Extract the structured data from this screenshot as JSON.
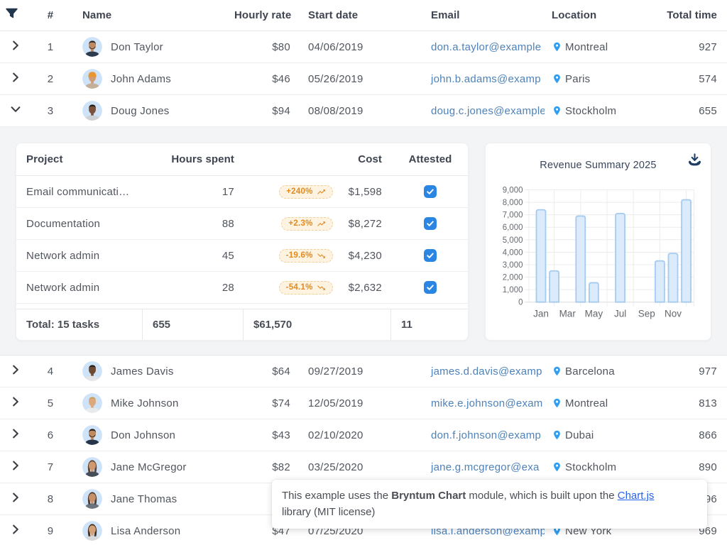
{
  "colors": {
    "accent_blue": "#2a86e2",
    "pin_blue": "#2f9ef2",
    "email_blue": "#4e82ba",
    "badge_orange": "#e28a20",
    "bar_fill": "#dcebfb",
    "bar_border": "#a5cbf0",
    "icon_navy": "#22364e"
  },
  "grid": {
    "columns": {
      "filter_icon": "filter-funnel-icon",
      "number": "#",
      "name": "Name",
      "hourly_rate": "Hourly rate",
      "start_date": "Start date",
      "email": "Email",
      "location": "Location",
      "total_time": "Total time"
    },
    "rows": [
      {
        "number": "1",
        "name": "Don Taylor",
        "hourly_rate": "$80",
        "start_date": "04/06/2019",
        "email": "don.a.taylor@example",
        "location": "Montreal",
        "total_time": "927",
        "expanded": false,
        "avatar": {
          "style": "beard",
          "skin": "#c08a63",
          "hair": "#2e2a28",
          "shirt": "#2c3b4d"
        }
      },
      {
        "number": "2",
        "name": "John Adams",
        "hourly_rate": "$46",
        "start_date": "05/26/2019",
        "email": "john.b.adams@examp",
        "location": "Paris",
        "total_time": "574",
        "expanded": false,
        "avatar": {
          "style": "beanie",
          "skin": "#d29b72",
          "hair": "#e8962f",
          "shirt": "#c4b098"
        }
      },
      {
        "number": "3",
        "name": "Doug Jones",
        "hourly_rate": "$94",
        "start_date": "08/08/2019",
        "email": "doug.c.jones@example",
        "location": "Stockholm",
        "total_time": "655",
        "expanded": true,
        "avatar": {
          "style": "short",
          "skin": "#7a5239",
          "hair": "#1f1b19",
          "shirt": "#cdd1d6"
        }
      },
      {
        "number": "4",
        "name": "James Davis",
        "hourly_rate": "$64",
        "start_date": "09/27/2019",
        "email": "james.d.davis@examp",
        "location": "Barcelona",
        "total_time": "977",
        "expanded": false,
        "avatar": {
          "style": "short",
          "skin": "#6e4a33",
          "hair": "#241f1c",
          "shirt": "#e3e5e8"
        }
      },
      {
        "number": "5",
        "name": "Mike Johnson",
        "hourly_rate": "$74",
        "start_date": "12/05/2019",
        "email": "mike.e.johnson@exam",
        "location": "Montreal",
        "total_time": "813",
        "expanded": false,
        "avatar": {
          "style": "short",
          "skin": "#dca87c",
          "hair": "#c9a15e",
          "shirt": "#e8eaec"
        }
      },
      {
        "number": "6",
        "name": "Don Johnson",
        "hourly_rate": "$43",
        "start_date": "02/10/2020",
        "email": "don.f.johnson@examp",
        "location": "Dubai",
        "total_time": "866",
        "expanded": false,
        "avatar": {
          "style": "beard",
          "skin": "#c08a5f",
          "hair": "#231e1b",
          "shirt": "#263447"
        }
      },
      {
        "number": "7",
        "name": "Jane McGregor",
        "hourly_rate": "$82",
        "start_date": "03/25/2020",
        "email": "jane.g.mcgregor@exa",
        "location": "Stockholm",
        "total_time": "890",
        "expanded": false,
        "avatar": {
          "style": "long",
          "skin": "#cf9a72",
          "hair": "#5d4433",
          "shirt": "#454d58"
        }
      },
      {
        "number": "8",
        "name": "Jane Thomas",
        "hourly_rate": "",
        "start_date": "",
        "email": "",
        "location": "",
        "total_time": "96",
        "expanded": false,
        "avatar": {
          "style": "long",
          "skin": "#c89068",
          "hair": "#4c3a2e",
          "shirt": "#6a737e"
        }
      },
      {
        "number": "9",
        "name": "Lisa Anderson",
        "hourly_rate": "$47",
        "start_date": "07/25/2020",
        "email": "lisa.l.anderson@examp",
        "location": "New York",
        "total_time": "969",
        "expanded": false,
        "avatar": {
          "style": "long",
          "skin": "#d3a078",
          "hair": "#45301f",
          "shirt": "#d5d9de"
        }
      }
    ]
  },
  "subgrid": {
    "columns": {
      "project": "Project",
      "hours": "Hours spent",
      "cost": "Cost",
      "attested": "Attested"
    },
    "rows": [
      {
        "project": "Email communicati…",
        "hours": "17",
        "trend": "+240%",
        "trend_dir": "up",
        "cost": "$1,598",
        "attested": true
      },
      {
        "project": "Documentation",
        "hours": "88",
        "trend": "+2.3%",
        "trend_dir": "up",
        "cost": "$8,272",
        "attested": true
      },
      {
        "project": "Network admin",
        "hours": "45",
        "trend": "-19.6%",
        "trend_dir": "down",
        "cost": "$4,230",
        "attested": true
      },
      {
        "project": "Network admin",
        "hours": "28",
        "trend": "-54.1%",
        "trend_dir": "down",
        "cost": "$2,632",
        "attested": true
      }
    ],
    "footer": {
      "total": "Total: 15 tasks",
      "hours": "655",
      "cost": "$61,570",
      "attested": "11"
    }
  },
  "chart_data": {
    "type": "bar",
    "title": "Revenue Summary 2025",
    "categories": [
      "Jan",
      "Feb",
      "Mar",
      "Apr",
      "May",
      "Jun",
      "Jul",
      "Aug",
      "Sep",
      "Oct",
      "Nov",
      "Dec"
    ],
    "values": [
      7400,
      2500,
      0,
      6900,
      1550,
      0,
      7100,
      0,
      0,
      3300,
      3900,
      8200
    ],
    "x_tick_labels": [
      "Jan",
      "Mar",
      "May",
      "Jul",
      "Sep",
      "Nov"
    ],
    "y_ticks": [
      "0",
      "1,000",
      "2,000",
      "3,000",
      "4,000",
      "5,000",
      "6,000",
      "7,000",
      "8,000",
      "9,000"
    ],
    "ylim": [
      0,
      9000
    ],
    "xlabel": "",
    "ylabel": "",
    "grid": true,
    "legend": "none"
  },
  "tooltip": {
    "text_1": "This example uses the ",
    "bold": "Bryntum Chart",
    "text_2": " module, which is built upon the ",
    "link": "Chart.js",
    "text_3": " library (MIT license)"
  }
}
